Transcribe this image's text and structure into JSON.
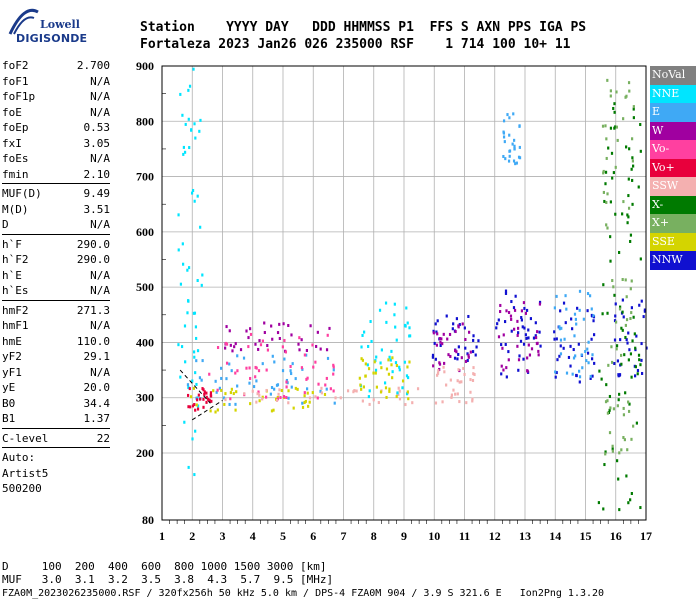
{
  "header": {
    "logo_top": "Lowell",
    "logo_bottom": "DIGISONDE",
    "line1": "Station    YYYY DAY   DDD HHMMSS P1  FFS S AXN PPS IGA PS",
    "line2": "Fortaleza 2023 Jan26 026 235000 RSF    1 714 100 10+ 11"
  },
  "params_group1": [
    {
      "label": "foF2",
      "value": "2.700"
    },
    {
      "label": "foF1",
      "value": "N/A"
    },
    {
      "label": "foF1p",
      "value": "N/A"
    },
    {
      "label": "foE",
      "value": "N/A"
    },
    {
      "label": "foEp",
      "value": "0.53"
    },
    {
      "label": "fxI",
      "value": "3.05"
    },
    {
      "label": "foEs",
      "value": "N/A"
    },
    {
      "label": "fmin",
      "value": "2.10"
    }
  ],
  "params_group2": [
    {
      "label": "MUF(D)",
      "value": "9.49"
    },
    {
      "label": "M(D)",
      "value": "3.51"
    },
    {
      "label": "D",
      "value": "N/A"
    }
  ],
  "params_group3": [
    {
      "label": "h`F",
      "value": "290.0"
    },
    {
      "label": "h`F2",
      "value": "290.0"
    },
    {
      "label": "h`E",
      "value": "N/A"
    },
    {
      "label": "h`Es",
      "value": "N/A"
    }
  ],
  "params_group4": [
    {
      "label": "hmF2",
      "value": "271.3"
    },
    {
      "label": "hmF1",
      "value": "N/A"
    },
    {
      "label": "hmE",
      "value": "110.0"
    },
    {
      "label": "yF2",
      "value": "29.1"
    },
    {
      "label": "yF1",
      "value": "N/A"
    },
    {
      "label": "yE",
      "value": "20.0"
    },
    {
      "label": "B0",
      "value": "34.4"
    },
    {
      "label": "B1",
      "value": "1.37"
    }
  ],
  "params_group5": [
    {
      "label": "C-level",
      "value": "22"
    }
  ],
  "auto": [
    "Auto:",
    "Artist5",
    "500200"
  ],
  "footer": {
    "d_line": "D     100  200  400  600  800 1000 1500 3000 [km]",
    "muf_line": "MUF   3.0  3.1  3.2  3.5  3.8  4.3  5.7  9.5 [MHz]",
    "file_line": "FZA0M_2023026235000.RSF / 320fx256h 50 kHz 5.0 km / DPS-4 FZA0M 904 / 3.9 S 321.6 E   Ion2Png 1.3.20"
  },
  "colors": {
    "NoVal": "#808080",
    "NNE": "#00e5ff",
    "E": "#3fa9f5",
    "W": "#a000a0",
    "Vo-": "#ff40a0",
    "Vo+": "#e8003c",
    "SSW": "#f4b0b0",
    "X-": "#007a00",
    "X+": "#78b060",
    "SSE": "#d4d400",
    "NNW": "#1010d0"
  },
  "chart_data": {
    "type": "scatter",
    "title": "",
    "xlabel": "",
    "ylabel": "",
    "xlim": [
      1,
      17
    ],
    "ylim": [
      80,
      900
    ],
    "x_ticks": [
      "1",
      "2",
      "3",
      "4",
      "5",
      "6",
      "7",
      "8",
      "9",
      "10",
      "11",
      "12",
      "13",
      "14",
      "15",
      "16",
      "17"
    ],
    "y_ticks": [
      "80",
      "200",
      "300",
      "400",
      "500",
      "600",
      "700",
      "800",
      "900"
    ],
    "grid": true,
    "legend_position": "right",
    "legend": [
      "NoVal",
      "NNE",
      "E",
      "W",
      "Vo-",
      "Vo+",
      "SSW",
      "X-",
      "X+",
      "SSE",
      "NNW"
    ],
    "clusters": [
      {
        "series": "NNE",
        "xmin": 1.5,
        "xmax": 2.3,
        "ymin": 160,
        "ymax": 900
      },
      {
        "series": "E",
        "xmin": 1.6,
        "xmax": 6.8,
        "ymin": 290,
        "ymax": 380
      },
      {
        "series": "SSE",
        "xmin": 1.8,
        "xmax": 6.8,
        "ymin": 275,
        "ymax": 320
      },
      {
        "series": "Vo+",
        "xmin": 1.8,
        "xmax": 2.6,
        "ymin": 280,
        "ymax": 320
      },
      {
        "series": "W",
        "xmin": 3.0,
        "xmax": 6.8,
        "ymin": 385,
        "ymax": 440
      },
      {
        "series": "Vo-",
        "xmin": 2.5,
        "xmax": 6.8,
        "ymin": 300,
        "ymax": 420
      },
      {
        "series": "SSW",
        "xmin": 3.0,
        "xmax": 9.5,
        "ymin": 290,
        "ymax": 320
      },
      {
        "series": "NNE",
        "xmin": 7.4,
        "xmax": 9.2,
        "ymin": 300,
        "ymax": 480
      },
      {
        "series": "SSE",
        "xmin": 7.5,
        "xmax": 9.3,
        "ymin": 300,
        "ymax": 380
      },
      {
        "series": "NNW",
        "xmin": 9.9,
        "xmax": 11.5,
        "ymin": 370,
        "ymax": 460
      },
      {
        "series": "W",
        "xmin": 9.9,
        "xmax": 11.2,
        "ymin": 350,
        "ymax": 440
      },
      {
        "series": "SSW",
        "xmin": 10.0,
        "xmax": 11.3,
        "ymin": 290,
        "ymax": 360
      },
      {
        "series": "NNW",
        "xmin": 12.0,
        "xmax": 13.6,
        "ymin": 340,
        "ymax": 500
      },
      {
        "series": "W",
        "xmin": 12.1,
        "xmax": 13.5,
        "ymin": 340,
        "ymax": 480
      },
      {
        "series": "NNW",
        "xmin": 13.9,
        "xmax": 15.3,
        "ymin": 330,
        "ymax": 480
      },
      {
        "series": "E",
        "xmin": 13.9,
        "xmax": 15.3,
        "ymin": 340,
        "ymax": 500
      },
      {
        "series": "NNW",
        "xmin": 15.9,
        "xmax": 17.0,
        "ymin": 340,
        "ymax": 480
      },
      {
        "series": "E",
        "xmin": 12.2,
        "xmax": 12.8,
        "ymin": 720,
        "ymax": 820
      },
      {
        "series": "X-",
        "xmin": 15.4,
        "xmax": 16.8,
        "ymin": 100,
        "ymax": 900
      },
      {
        "series": "X+",
        "xmin": 15.5,
        "xmax": 16.6,
        "ymin": 200,
        "ymax": 880
      }
    ]
  }
}
